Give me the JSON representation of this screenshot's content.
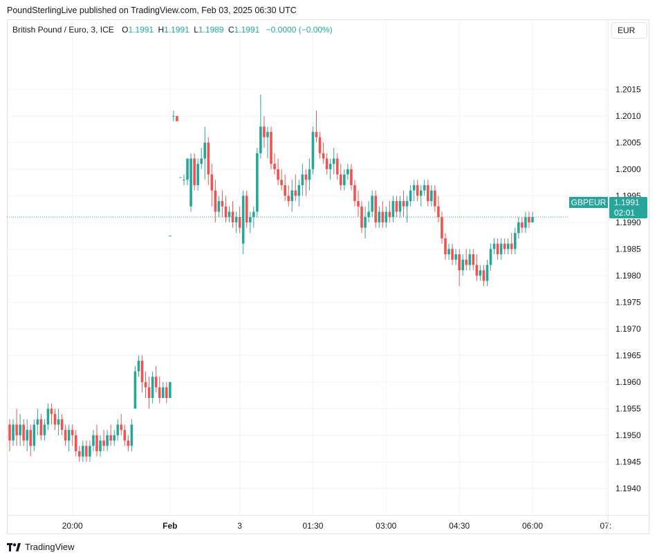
{
  "header": {
    "published": "PoundSterlingLive published on TradingView.com, Feb 03, 2025 06:30 UTC"
  },
  "legend": {
    "symbol": "British Pound / Euro, 3, ICE",
    "open_label": "O",
    "open": "1.1991",
    "high_label": "H",
    "high": "1.1991",
    "low_label": "L",
    "low": "1.1989",
    "close_label": "C",
    "close": "1.1991",
    "change": "−0.0000 (−0.00%)"
  },
  "currency_button": "EUR",
  "price_tag": {
    "symbol": "GBPEUR",
    "price": "1.1991",
    "countdown": "02:01"
  },
  "footer": {
    "brand": "TradingView"
  },
  "colors": {
    "up": "#26a69a",
    "down": "#ef5350",
    "grid": "#f0f3fa",
    "axis_text": "#131722"
  },
  "chart_data": {
    "type": "candlestick",
    "title": "British Pound / Euro, 3, ICE",
    "ylim": [
      1.1937,
      1.2024
    ],
    "y_ticks": [
      "1.2015",
      "1.2010",
      "1.2005",
      "1.2000",
      "1.1995",
      "1.1990",
      "1.1985",
      "1.1980",
      "1.1975",
      "1.1970",
      "1.1965",
      "1.1960",
      "1.1955",
      "1.1950",
      "1.1945",
      "1.1940"
    ],
    "x_ticks": [
      {
        "label": "20:00",
        "bar": 18,
        "bold": false
      },
      {
        "label": "Feb",
        "bar": 46,
        "bold": true
      },
      {
        "label": "3",
        "bar": 66,
        "bold": false
      },
      {
        "label": "01:30",
        "bar": 87,
        "bold": false
      },
      {
        "label": "03:00",
        "bar": 108,
        "bold": false
      },
      {
        "label": "04:30",
        "bar": 129,
        "bold": false
      },
      {
        "label": "06:00",
        "bar": 150,
        "bold": false
      },
      {
        "label": "07:",
        "bar": 171,
        "bold": false
      }
    ],
    "last_price": 1.1991,
    "grid": true,
    "bars": [
      [
        0,
        1.1952,
        1.1953,
        1.1947,
        1.1949
      ],
      [
        1,
        1.1949,
        1.1953,
        1.1948,
        1.1952
      ],
      [
        2,
        1.1952,
        1.1955,
        1.1948,
        1.195
      ],
      [
        3,
        1.195,
        1.1954,
        1.1948,
        1.1952
      ],
      [
        4,
        1.1952,
        1.1953,
        1.1948,
        1.1949
      ],
      [
        5,
        1.1949,
        1.1953,
        1.1947,
        1.1951
      ],
      [
        6,
        1.1951,
        1.1952,
        1.1946,
        1.1948
      ],
      [
        7,
        1.1948,
        1.1953,
        1.1947,
        1.1952
      ],
      [
        8,
        1.1952,
        1.1955,
        1.195,
        1.1953
      ],
      [
        9,
        1.1953,
        1.1954,
        1.1949,
        1.195
      ],
      [
        10,
        1.195,
        1.1953,
        1.1949,
        1.1952
      ],
      [
        11,
        1.1952,
        1.1956,
        1.1951,
        1.1955
      ],
      [
        12,
        1.1955,
        1.1956,
        1.1952,
        1.1954
      ],
      [
        13,
        1.1954,
        1.1955,
        1.1951,
        1.1952
      ],
      [
        14,
        1.1952,
        1.1955,
        1.195,
        1.1953
      ],
      [
        15,
        1.1953,
        1.1954,
        1.195,
        1.1951
      ],
      [
        16,
        1.1951,
        1.1952,
        1.1948,
        1.1949
      ],
      [
        17,
        1.1949,
        1.1952,
        1.1947,
        1.1951
      ],
      [
        18,
        1.1951,
        1.1952,
        1.1948,
        1.195
      ],
      [
        19,
        1.195,
        1.1951,
        1.1946,
        1.1947
      ],
      [
        20,
        1.1947,
        1.1948,
        1.1945,
        1.1946
      ],
      [
        21,
        1.1946,
        1.1949,
        1.1945,
        1.1948
      ],
      [
        22,
        1.1948,
        1.1949,
        1.1945,
        1.1946
      ],
      [
        23,
        1.1946,
        1.1949,
        1.1945,
        1.1948
      ],
      [
        24,
        1.1948,
        1.1951,
        1.1947,
        1.195
      ],
      [
        25,
        1.195,
        1.1952,
        1.1946,
        1.1947
      ],
      [
        26,
        1.1947,
        1.195,
        1.1946,
        1.1949
      ],
      [
        27,
        1.1949,
        1.1951,
        1.1947,
        1.1948
      ],
      [
        28,
        1.1948,
        1.1951,
        1.1947,
        1.195
      ],
      [
        29,
        1.195,
        1.1952,
        1.1948,
        1.1949
      ],
      [
        30,
        1.1949,
        1.1951,
        1.1948,
        1.195
      ],
      [
        31,
        1.195,
        1.1953,
        1.1949,
        1.1952
      ],
      [
        32,
        1.1952,
        1.1954,
        1.195,
        1.1951
      ],
      [
        33,
        1.1951,
        1.1952,
        1.1948,
        1.1949
      ],
      [
        34,
        1.1949,
        1.195,
        1.1947,
        1.1948
      ],
      [
        35,
        1.1948,
        1.1953,
        1.1947,
        1.1952
      ],
      [
        36,
        1.1955,
        1.1963,
        1.1955,
        1.1962
      ],
      [
        37,
        1.1962,
        1.1965,
        1.1961,
        1.1964
      ],
      [
        38,
        1.1964,
        1.1965,
        1.1958,
        1.196
      ],
      [
        39,
        1.196,
        1.1962,
        1.1957,
        1.1959
      ],
      [
        40,
        1.1959,
        1.1961,
        1.1955,
        1.1957
      ],
      [
        41,
        1.1957,
        1.1962,
        1.1956,
        1.1961
      ],
      [
        42,
        1.1961,
        1.1963,
        1.1958,
        1.1959
      ],
      [
        43,
        1.1959,
        1.1961,
        1.1956,
        1.1957
      ],
      [
        44,
        1.1957,
        1.196,
        1.1957,
        1.1959
      ],
      [
        45,
        1.1959,
        1.196,
        1.1956,
        1.1957
      ],
      [
        46,
        1.1957,
        1.196,
        1.1957,
        1.196
      ],
      [
        46,
        1.19875,
        1.19875,
        1.19875,
        1.19875
      ],
      [
        47,
        1.201,
        1.2011,
        1.2009,
        1.201
      ],
      [
        48,
        1.201,
        1.201,
        1.2009,
        1.2009
      ],
      [
        49,
        1.19985,
        1.19985,
        1.19985,
        1.19985
      ],
      [
        50,
        1.1998,
        1.1999,
        1.1997,
        1.1998
      ],
      [
        51,
        1.1998,
        1.2002,
        1.1997,
        1.2002
      ],
      [
        52,
        1.1993,
        1.2003,
        1.1992,
        1.2002
      ],
      [
        53,
        1.2002,
        1.2003,
        1.1996,
        1.1997
      ],
      [
        54,
        1.1997,
        1.2002,
        1.1996,
        1.2001
      ],
      [
        55,
        1.2001,
        1.2004,
        1.2,
        1.2002
      ],
      [
        56,
        1.2002,
        1.2008,
        1.1998,
        1.2005
      ],
      [
        57,
        1.2005,
        1.2006,
        1.1997,
        1.1999
      ],
      [
        58,
        1.1999,
        1.2001,
        1.1993,
        1.1996
      ],
      [
        59,
        1.1996,
        1.1998,
        1.199,
        1.1992
      ],
      [
        60,
        1.1992,
        1.1995,
        1.1991,
        1.1994
      ],
      [
        61,
        1.1994,
        1.1996,
        1.1991,
        1.1993
      ],
      [
        62,
        1.1993,
        1.1995,
        1.199,
        1.1991
      ],
      [
        63,
        1.1991,
        1.1993,
        1.199,
        1.1992
      ],
      [
        64,
        1.1992,
        1.1994,
        1.1989,
        1.199
      ],
      [
        65,
        1.199,
        1.1992,
        1.1988,
        1.1991
      ],
      [
        66,
        1.1991,
        1.1993,
        1.1988,
        1.1989
      ],
      [
        67,
        1.1986,
        1.1996,
        1.1984,
        1.1995
      ],
      [
        68,
        1.1995,
        1.1996,
        1.1989,
        1.199
      ],
      [
        69,
        1.199,
        1.1992,
        1.1988,
        1.1991
      ],
      [
        70,
        1.1991,
        1.1993,
        1.1989,
        1.1992
      ],
      [
        71,
        1.1992,
        1.2004,
        1.1991,
        1.2003
      ],
      [
        72,
        1.2003,
        1.2014,
        1.2002,
        1.2008
      ],
      [
        73,
        1.2008,
        1.201,
        1.2004,
        1.2006
      ],
      [
        74,
        1.2006,
        1.2008,
        1.2002,
        1.2007
      ],
      [
        75,
        1.2007,
        1.2008,
        1.2,
        1.2001
      ],
      [
        76,
        1.2001,
        1.2003,
        1.1999,
        1.2
      ],
      [
        77,
        1.2,
        1.2002,
        1.1997,
        1.1998
      ],
      [
        78,
        1.1998,
        1.2,
        1.1996,
        1.1997
      ],
      [
        79,
        1.1997,
        1.1999,
        1.1994,
        1.1995
      ],
      [
        80,
        1.1995,
        1.1997,
        1.1993,
        1.1994
      ],
      [
        81,
        1.1994,
        1.1998,
        1.1992,
        1.1996
      ],
      [
        82,
        1.1996,
        1.1999,
        1.1994,
        1.1995
      ],
      [
        83,
        1.1995,
        1.1998,
        1.1993,
        1.1997
      ],
      [
        84,
        1.1997,
        1.2001,
        1.1995,
        1.1999
      ],
      [
        85,
        1.1999,
        1.2,
        1.1995,
        1.1998
      ],
      [
        86,
        1.1998,
        1.2002,
        1.1996,
        1.2
      ],
      [
        87,
        1.2,
        1.2008,
        1.1999,
        1.2007
      ],
      [
        88,
        1.2007,
        1.2011,
        1.2005,
        1.2006
      ],
      [
        89,
        1.2006,
        1.2007,
        1.2002,
        1.2003
      ],
      [
        90,
        1.2003,
        1.2005,
        1.2001,
        1.2002
      ],
      [
        91,
        1.2002,
        1.2003,
        1.1999,
        1.2
      ],
      [
        92,
        1.2,
        1.2002,
        1.1998,
        1.2001
      ],
      [
        93,
        1.2001,
        1.2004,
        1.1999,
        1.2002
      ],
      [
        94,
        1.2002,
        1.2003,
        1.1998,
        1.1999
      ],
      [
        95,
        1.1999,
        1.2001,
        1.1996,
        1.1997
      ],
      [
        96,
        1.1997,
        1.2,
        1.1996,
        1.1999
      ],
      [
        97,
        1.1999,
        1.2001,
        1.1998,
        1.2
      ],
      [
        98,
        1.2,
        1.2001,
        1.1996,
        1.1997
      ],
      [
        99,
        1.1997,
        1.1998,
        1.1993,
        1.1994
      ],
      [
        100,
        1.1994,
        1.1996,
        1.1991,
        1.1993
      ],
      [
        101,
        1.1993,
        1.1994,
        1.1988,
        1.1989
      ],
      [
        102,
        1.1989,
        1.1993,
        1.1987,
        1.1991
      ],
      [
        103,
        1.1991,
        1.1994,
        1.199,
        1.1992
      ],
      [
        104,
        1.1992,
        1.1996,
        1.1991,
        1.1995
      ],
      [
        105,
        1.1995,
        1.1996,
        1.1989,
        1.199
      ],
      [
        106,
        1.199,
        1.1993,
        1.1989,
        1.1992
      ],
      [
        107,
        1.1992,
        1.1994,
        1.1989,
        1.199
      ],
      [
        108,
        1.199,
        1.1993,
        1.1989,
        1.1992
      ],
      [
        109,
        1.1992,
        1.1994,
        1.199,
        1.1991
      ],
      [
        110,
        1.1991,
        1.1995,
        1.199,
        1.1994
      ],
      [
        111,
        1.1994,
        1.1995,
        1.1991,
        1.1992
      ],
      [
        112,
        1.1992,
        1.1995,
        1.1991,
        1.1994
      ],
      [
        113,
        1.1994,
        1.1996,
        1.1991,
        1.1993
      ],
      [
        114,
        1.1993,
        1.1995,
        1.199,
        1.1994
      ],
      [
        115,
        1.1994,
        1.1997,
        1.1993,
        1.1996
      ],
      [
        116,
        1.1996,
        1.1998,
        1.1994,
        1.1997
      ],
      [
        117,
        1.1997,
        1.1998,
        1.1994,
        1.1995
      ],
      [
        118,
        1.1995,
        1.1997,
        1.1993,
        1.1996
      ],
      [
        119,
        1.1996,
        1.1998,
        1.1995,
        1.1997
      ],
      [
        120,
        1.1997,
        1.1998,
        1.1993,
        1.1994
      ],
      [
        121,
        1.1994,
        1.1997,
        1.1993,
        1.1996
      ],
      [
        122,
        1.1996,
        1.1997,
        1.1992,
        1.1993
      ],
      [
        123,
        1.1993,
        1.1995,
        1.199,
        1.1991
      ],
      [
        124,
        1.1991,
        1.1992,
        1.1986,
        1.1987
      ],
      [
        125,
        1.1987,
        1.1988,
        1.1983,
        1.1984
      ],
      [
        126,
        1.1984,
        1.1986,
        1.1983,
        1.1985
      ],
      [
        127,
        1.1985,
        1.1986,
        1.1982,
        1.1983
      ],
      [
        128,
        1.1983,
        1.1985,
        1.1982,
        1.1984
      ],
      [
        129,
        1.1984,
        1.1985,
        1.1978,
        1.1981
      ],
      [
        130,
        1.1981,
        1.1984,
        1.198,
        1.1983
      ],
      [
        131,
        1.1983,
        1.1985,
        1.1981,
        1.1982
      ],
      [
        132,
        1.1982,
        1.1985,
        1.1981,
        1.1984
      ],
      [
        133,
        1.1984,
        1.1985,
        1.1981,
        1.1982
      ],
      [
        134,
        1.1982,
        1.1984,
        1.1979,
        1.198
      ],
      [
        135,
        1.198,
        1.1982,
        1.1979,
        1.1981
      ],
      [
        136,
        1.1981,
        1.1982,
        1.1978,
        1.1979
      ],
      [
        137,
        1.1979,
        1.1983,
        1.1978,
        1.1982
      ],
      [
        138,
        1.1982,
        1.1986,
        1.1981,
        1.1985
      ],
      [
        139,
        1.1985,
        1.1987,
        1.1984,
        1.1986
      ],
      [
        140,
        1.1986,
        1.1987,
        1.1983,
        1.1984
      ],
      [
        141,
        1.1984,
        1.1987,
        1.1983,
        1.1986
      ],
      [
        142,
        1.1986,
        1.1987,
        1.1984,
        1.1985
      ],
      [
        143,
        1.1985,
        1.1987,
        1.1984,
        1.1986
      ],
      [
        144,
        1.1986,
        1.1988,
        1.1984,
        1.1985
      ],
      [
        145,
        1.1985,
        1.1989,
        1.1984,
        1.1988
      ],
      [
        146,
        1.1988,
        1.1991,
        1.1987,
        1.199
      ],
      [
        147,
        1.199,
        1.1991,
        1.1988,
        1.1989
      ],
      [
        148,
        1.1989,
        1.1992,
        1.1988,
        1.1991
      ],
      [
        149,
        1.1991,
        1.1992,
        1.1989,
        1.199
      ],
      [
        150,
        1.199,
        1.1992,
        1.199,
        1.1991
      ]
    ]
  }
}
